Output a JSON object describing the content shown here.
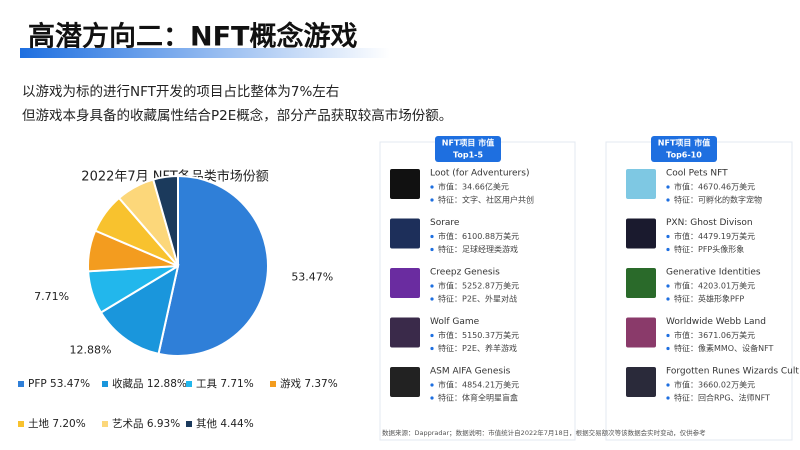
{
  "header": {
    "title": "高潜方向二：NFT概念游戏",
    "lines": [
      "以游戏为标的进行NFT开发的项目占比整体为7%左右",
      "但游戏本身具备的收藏属性结合P2E概念，部分产品获取较高市场份额。"
    ]
  },
  "chart_data": {
    "type": "pie",
    "title": "2022年7月 NFT各品类市场份额",
    "categories": [
      "PFP",
      "收藏品",
      "工具",
      "游戏",
      "土地",
      "艺术品",
      "其他"
    ],
    "values": [
      53.47,
      12.88,
      7.71,
      7.37,
      7.2,
      6.93,
      4.44
    ],
    "value_labels": [
      "53.47%",
      "12.88%",
      "7.71%",
      "7.37%",
      "7.20%",
      "6.93%",
      "4.44%"
    ],
    "colors": [
      "#2f7fd8",
      "#1a96dc",
      "#22b7ec",
      "#f39c1f",
      "#f8c22e",
      "#fcd77a",
      "#1b3a5c"
    ],
    "legend": "bottom"
  },
  "panels": [
    {
      "badge": [
        "NFT项目 市值",
        "Top1-5"
      ],
      "items": [
        {
          "name": "Loot (for Adventurers)",
          "cap": "市值：34.66亿美元",
          "feature": "特征：文字、社区用户共创",
          "icon": "#111111"
        },
        {
          "name": "Sorare",
          "cap": "市值：6100.88万美元",
          "feature": "特征：足球经理类游戏",
          "icon": "#1d2f5a"
        },
        {
          "name": "Creepz Genesis",
          "cap": "市值：5252.87万美元",
          "feature": "特征：P2E、外星对战",
          "icon": "#6a2ca0"
        },
        {
          "name": "Wolf Game",
          "cap": "市值：5150.37万美元",
          "feature": "特征：P2E、养羊游戏",
          "icon": "#3a2a4a"
        },
        {
          "name": "ASM AIFA Genesis",
          "cap": "市值：4854.21万美元",
          "feature": "特征：体育全明星盲盒",
          "icon": "#222222"
        }
      ]
    },
    {
      "badge": [
        "NFT项目 市值",
        "Top6-10"
      ],
      "items": [
        {
          "name": "Cool Pets NFT",
          "cap": "市值：4670.46万美元",
          "feature": "特征：可孵化的数字宠物",
          "icon": "#7ec8e3"
        },
        {
          "name": "PXN: Ghost Divison",
          "cap": "市值：4479.19万美元",
          "feature": "特征：PFP头像形象",
          "icon": "#1a1a2e"
        },
        {
          "name": "Generative Identities",
          "cap": "市值：4203.01万美元",
          "feature": "特征：英雄形象PFP",
          "icon": "#2a6a2a"
        },
        {
          "name": "Worldwide Webb Land",
          "cap": "市值：3671.06万美元",
          "feature": "特征：像素MMO、设备NFT",
          "icon": "#8a3a6a"
        },
        {
          "name": "Forgotten Runes Wizards Cult",
          "cap": "市值：3660.02万美元",
          "feature": "特征：回合RPG、法师NFT",
          "icon": "#2a2a3a"
        }
      ]
    }
  ],
  "footer": "数据来源：Dappradar；数据说明：市值统计自2022年7月18日，根据交易额次等该数据会实时变动，仅供参考"
}
